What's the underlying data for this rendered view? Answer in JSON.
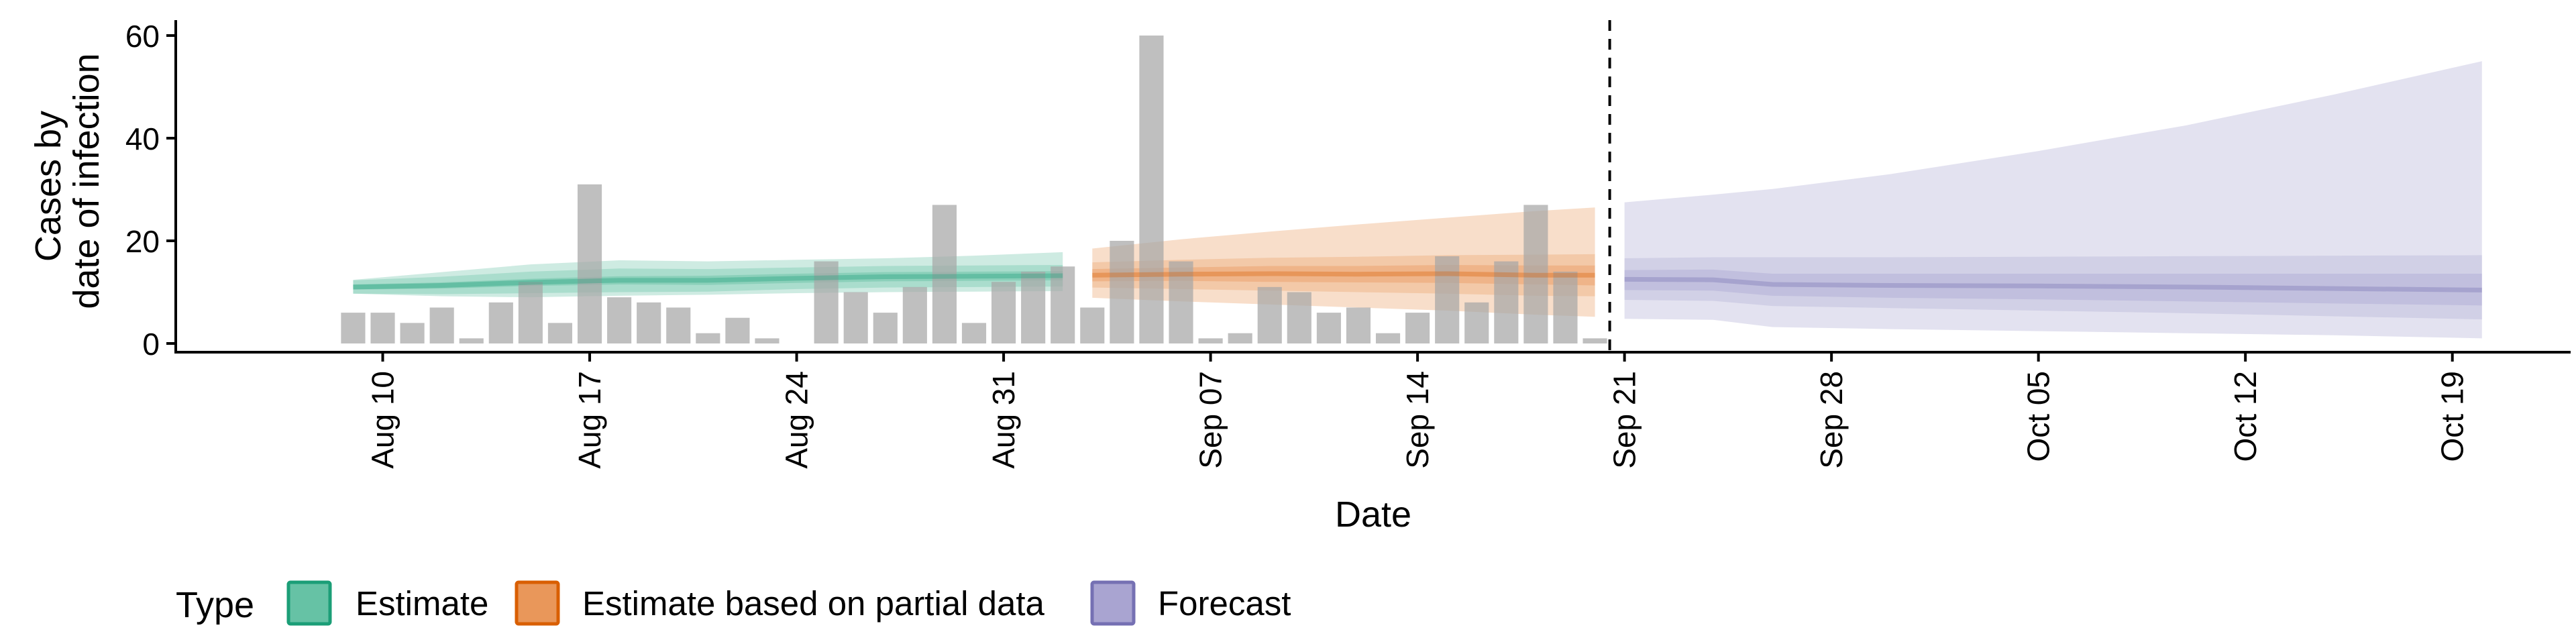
{
  "chart_data": {
    "type": "bar",
    "xlabel": "Date",
    "ylabel_lines": [
      "Cases by",
      "date of infection"
    ],
    "ylim": [
      0,
      63
    ],
    "yticks": [
      0,
      20,
      40,
      60
    ],
    "xlim": [
      "2020-08-03",
      "2020-10-23"
    ],
    "xticks": [
      {
        "date": "2020-08-10",
        "label": "Aug 10"
      },
      {
        "date": "2020-08-17",
        "label": "Aug 17"
      },
      {
        "date": "2020-08-24",
        "label": "Aug 24"
      },
      {
        "date": "2020-08-31",
        "label": "Aug 31"
      },
      {
        "date": "2020-09-07",
        "label": "Sep 07"
      },
      {
        "date": "2020-09-14",
        "label": "Sep 14"
      },
      {
        "date": "2020-09-21",
        "label": "Sep 21"
      },
      {
        "date": "2020-09-28",
        "label": "Sep 28"
      },
      {
        "date": "2020-10-05",
        "label": "Oct 05"
      },
      {
        "date": "2020-10-12",
        "label": "Oct 12"
      },
      {
        "date": "2020-10-19",
        "label": "Oct 19"
      }
    ],
    "forecast_start": "2020-09-20",
    "reported_cases": {
      "start_date": "2020-08-09",
      "values": [
        6,
        6,
        4,
        7,
        1,
        8,
        12,
        4,
        31,
        9,
        8,
        7,
        2,
        5,
        1,
        0,
        16,
        10,
        6,
        11,
        27,
        4,
        12,
        14,
        15,
        7,
        20,
        60,
        16,
        1,
        2,
        11,
        10,
        6,
        7,
        2,
        6,
        17,
        8,
        16,
        27,
        14,
        1
      ]
    },
    "legend": {
      "title": "Type",
      "entries": [
        {
          "label": "Estimate",
          "fill": "#66c2a5",
          "stroke": "#1b9e77"
        },
        {
          "label": "Estimate based on partial data",
          "fill": "#e9975a",
          "stroke": "#d95f02"
        },
        {
          "label": "Forecast",
          "fill": "#a9a4d1",
          "stroke": "#7570b3"
        }
      ]
    },
    "series": [
      {
        "type_index": 0,
        "color": "#1b9e77",
        "x": [
          "2020-08-09",
          "2020-08-12",
          "2020-08-15",
          "2020-08-18",
          "2020-08-21",
          "2020-08-24",
          "2020-08-27",
          "2020-08-30",
          "2020-09-02"
        ],
        "median": [
          11.0,
          11.3,
          11.9,
          12.3,
          12.3,
          12.7,
          13.0,
          13.1,
          13.2
        ],
        "lower_50": [
          10.5,
          10.7,
          11.2,
          11.5,
          11.4,
          11.8,
          12.1,
          12.2,
          12.3
        ],
        "upper_50": [
          11.5,
          11.9,
          12.6,
          13.1,
          13.2,
          13.6,
          13.9,
          14.0,
          14.1
        ],
        "lower_90": [
          9.7,
          9.6,
          9.8,
          10.0,
          10.1,
          10.6,
          10.9,
          11.0,
          11.1
        ],
        "upper_90": [
          12.3,
          13.0,
          14.0,
          14.6,
          14.5,
          14.8,
          15.1,
          15.2,
          15.3
        ],
        "lower_outer": [
          9.7,
          9.2,
          9.0,
          9.3,
          9.5,
          9.8,
          10.0,
          10.1,
          10.2
        ],
        "upper_outer": [
          12.4,
          13.9,
          15.4,
          16.2,
          16.0,
          16.3,
          16.6,
          17.1,
          17.8
        ]
      },
      {
        "type_index": 1,
        "color": "#d95f02",
        "x": [
          "2020-09-03",
          "2020-09-06",
          "2020-09-09",
          "2020-09-12",
          "2020-09-15",
          "2020-09-18",
          "2020-09-20"
        ],
        "median": [
          13.3,
          13.5,
          13.6,
          13.5,
          13.6,
          13.3,
          13.3
        ],
        "lower_50": [
          12.1,
          12.2,
          12.0,
          11.9,
          11.8,
          11.5,
          11.3
        ],
        "upper_50": [
          14.5,
          14.8,
          15.1,
          15.1,
          15.3,
          15.2,
          15.2
        ],
        "lower_90": [
          10.9,
          10.6,
          10.3,
          10.0,
          9.7,
          9.3,
          9.2
        ],
        "upper_90": [
          15.8,
          16.3,
          16.7,
          16.9,
          17.2,
          17.3,
          17.4
        ],
        "lower_outer": [
          8.9,
          8.2,
          7.6,
          7.0,
          6.4,
          5.6,
          5.2
        ],
        "upper_outer": [
          18.5,
          20.3,
          21.8,
          23.2,
          24.5,
          25.8,
          26.5
        ]
      },
      {
        "type_index": 2,
        "color": "#7570b3",
        "x": [
          "2020-09-21",
          "2020-09-24",
          "2020-09-26",
          "2020-09-30",
          "2020-10-05",
          "2020-10-10",
          "2020-10-15",
          "2020-10-20"
        ],
        "median": [
          12.5,
          12.4,
          11.5,
          11.3,
          11.2,
          11.0,
          10.7,
          10.4
        ],
        "lower_50": [
          10.4,
          10.3,
          9.3,
          8.9,
          8.6,
          8.2,
          7.8,
          7.4
        ],
        "upper_50": [
          14.3,
          14.4,
          13.6,
          13.6,
          13.6,
          13.6,
          13.6,
          13.6
        ],
        "lower_90": [
          8.5,
          8.3,
          7.3,
          6.9,
          6.4,
          5.9,
          5.3,
          4.7
        ],
        "upper_90": [
          16.6,
          16.8,
          16.8,
          16.8,
          16.9,
          17.0,
          17.1,
          17.2
        ],
        "lower_outer": [
          4.8,
          4.6,
          3.2,
          2.8,
          2.4,
          2.0,
          1.6,
          1.0
        ],
        "upper_outer": [
          27.5,
          29.0,
          30.1,
          33.0,
          37.5,
          42.5,
          48.5,
          55.0
        ]
      }
    ]
  }
}
